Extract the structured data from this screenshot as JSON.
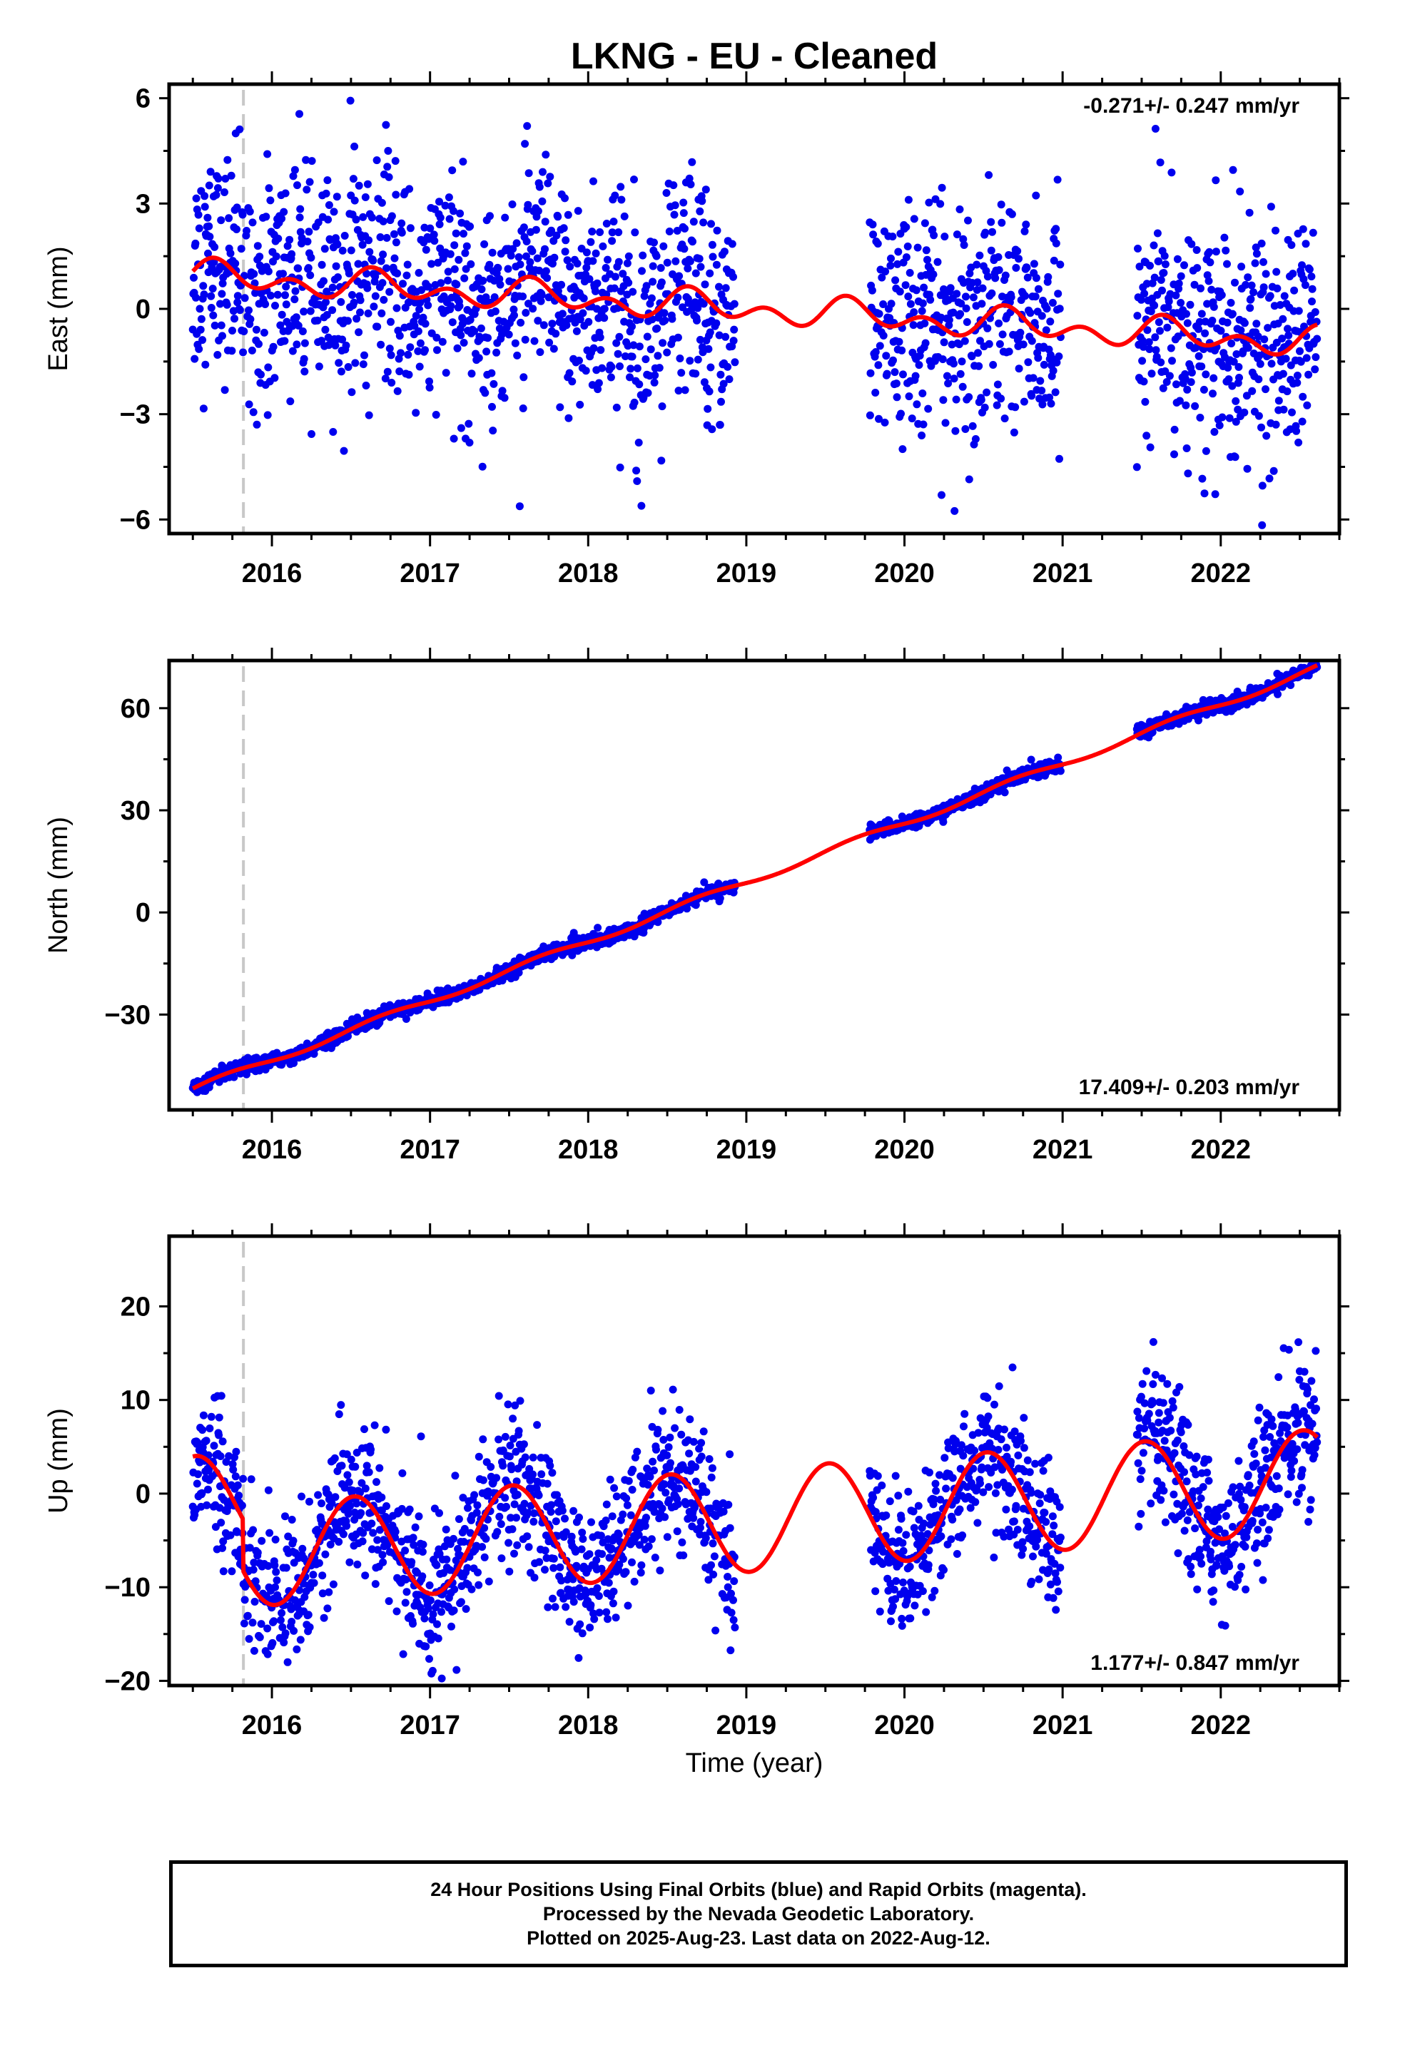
{
  "title": "LKNG  - EU - Cleaned",
  "x_axis": {
    "label": "Time (year)",
    "tick_labels": [
      "2016",
      "2017",
      "2018",
      "2019",
      "2020",
      "2021",
      "2022"
    ],
    "range": [
      2015.35,
      2022.75
    ],
    "event_line": 2015.82
  },
  "caption": [
    "24 Hour Positions Using Final Orbits (blue) and Rapid Orbits (magenta).",
    "Processed by the Nevada Geodetic Laboratory.",
    "Plotted on 2025-Aug-23. Last data on 2022-Aug-12."
  ],
  "colors": {
    "points": "#0000ee",
    "model": "#ff0000",
    "event_line": "#c8c8c8",
    "frame": "#000000"
  },
  "chart_data": [
    {
      "type": "scatter",
      "name": "east",
      "ylabel": "East (mm)",
      "ylim": [
        -6.4,
        6.4
      ],
      "yticks": [
        -6,
        -3,
        0,
        3,
        6
      ],
      "ytick_labels": [
        "−6",
        "−3",
        "0",
        "3",
        "6"
      ],
      "rate_label": "-0.271+/- 0.247 mm/yr",
      "rate_position": "top-right",
      "rate": -0.271,
      "offset": 0.95,
      "annual_amp": 0.25,
      "semiannual_amp": 0.3,
      "annual_phase": 0.5,
      "noise": 1.6,
      "grid": false,
      "data_segments": [
        [
          2015.5,
          2018.93
        ],
        [
          2019.78,
          2020.99
        ],
        [
          2021.47,
          2022.61
        ]
      ]
    },
    {
      "type": "scatter",
      "name": "north",
      "ylabel": "North (mm)",
      "ylim": [
        -58,
        74
      ],
      "yticks": [
        -30,
        0,
        30,
        60
      ],
      "ytick_labels": [
        "−30",
        "0",
        "30",
        "60"
      ],
      "rate_label": "17.409+/- 0.203 mm/yr",
      "rate_position": "bottom-right",
      "rate": 17.409,
      "model_start": -52,
      "annual_amp": 1.0,
      "annual_phase": 0.3,
      "noise": 1.0,
      "grid": false,
      "data_segments": [
        [
          2015.5,
          2018.93
        ],
        [
          2019.78,
          2020.99
        ],
        [
          2021.47,
          2022.61
        ]
      ]
    },
    {
      "type": "scatter",
      "name": "up",
      "ylabel": "Up (mm)",
      "ylim": [
        -20.5,
        27.5
      ],
      "yticks": [
        -20,
        -10,
        0,
        10,
        20
      ],
      "ytick_labels": [
        "−20",
        "−10",
        "0",
        "10",
        "20"
      ],
      "rate_label": "1.177+/- 0.847 mm/yr",
      "rate_position": "bottom-right",
      "rate": 1.177,
      "offset": -1.5,
      "annual_amp": 5.5,
      "annual_peak": 2015.52,
      "event_step": -5.5,
      "noise": 3.8,
      "grid": false,
      "data_segments": [
        [
          2015.5,
          2018.93
        ],
        [
          2019.78,
          2020.99
        ],
        [
          2021.47,
          2022.61
        ]
      ]
    }
  ]
}
